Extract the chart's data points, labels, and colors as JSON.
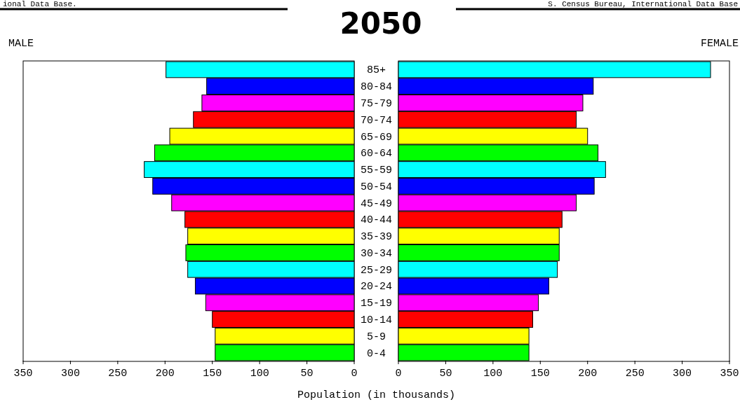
{
  "chart_data": [
    {
      "type": "bar",
      "orientation": "horizontal",
      "title": "2050",
      "subtitle": "MALE",
      "xlabel": "Population (in thousands)",
      "annotations": [
        "ional Data Base.",
        "S. Census Bureau, International Data Base"
      ],
      "categories": [
        "85+",
        "80-84",
        "75-79",
        "70-74",
        "65-69",
        "60-64",
        "55-59",
        "50-54",
        "45-49",
        "40-44",
        "35-39",
        "30-34",
        "25-29",
        "20-24",
        "15-19",
        "10-14",
        "5-9",
        "0-4"
      ],
      "values": [
        199,
        156,
        161,
        170,
        195,
        211,
        222,
        213,
        193,
        179,
        176,
        178,
        176,
        168,
        157,
        150,
        147,
        147
      ],
      "colors": [
        "#00ffff",
        "#0000ff",
        "#ff00ff",
        "#ff0000",
        "#ffff00",
        "#00ff00",
        "#00ffff",
        "#0000ff",
        "#ff00ff",
        "#ff0000",
        "#ffff00",
        "#00ff00",
        "#00ffff",
        "#0000ff",
        "#ff00ff",
        "#ff0000",
        "#ffff00",
        "#00ff00"
      ],
      "xlim": [
        350,
        0
      ],
      "xticks": [
        350,
        300,
        250,
        200,
        150,
        100,
        50,
        0
      ],
      "grid": false
    },
    {
      "type": "bar",
      "orientation": "horizontal",
      "subtitle": "FEMALE",
      "tick_labels": "x",
      "categories": [
        null,
        null,
        null,
        null,
        null,
        null,
        null,
        null,
        null,
        null,
        null,
        null,
        null,
        null,
        null,
        null,
        null,
        null
      ],
      "values": [
        330,
        206,
        195,
        188,
        200,
        211,
        219,
        207,
        188,
        173,
        170,
        170,
        168,
        159,
        148,
        142,
        138,
        138
      ],
      "colors": [
        "#00ffff",
        "#0000ff",
        "#ff00ff",
        "#ff0000",
        "#ffff00",
        "#00ff00",
        "#00ffff",
        "#0000ff",
        "#ff00ff",
        "#ff0000",
        "#ffff00",
        "#00ff00",
        "#00ffff",
        "#0000ff",
        "#ff00ff",
        "#ff0000",
        "#ffff00",
        "#00ff00"
      ],
      "xlim": [
        0,
        350
      ],
      "xticks": [
        0,
        50,
        100,
        150,
        200,
        250,
        300,
        350
      ],
      "grid": false
    }
  ]
}
